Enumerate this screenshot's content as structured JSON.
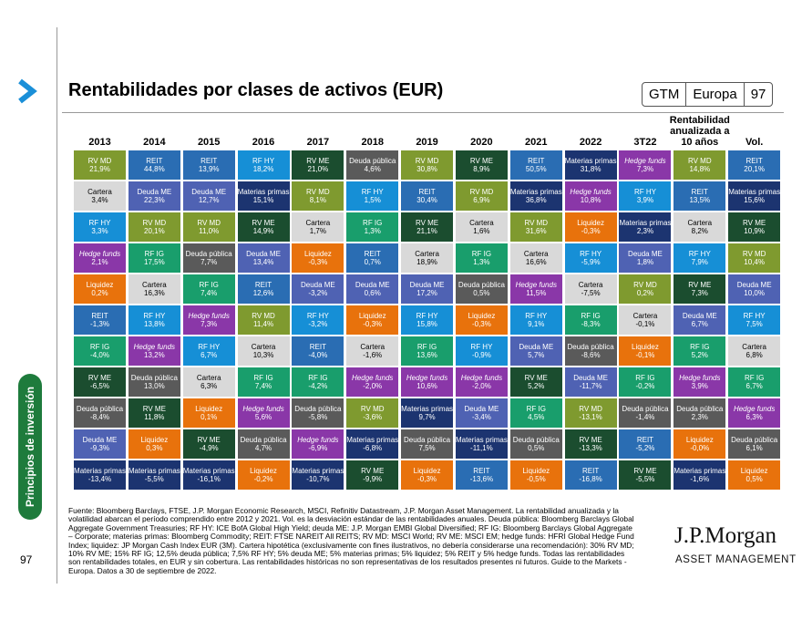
{
  "sidebar": {
    "section": "Principios de inversión",
    "page": "97"
  },
  "header": {
    "title": "Rentabilidades por clases de activos (EUR)",
    "tags": [
      "GTM",
      "Europa",
      "97"
    ]
  },
  "table": {
    "columns": [
      "2013",
      "2014",
      "2015",
      "2016",
      "2017",
      "2018",
      "2019",
      "2020",
      "2021",
      "2022",
      "3T22",
      "Rentabilidad anualizada a 10 años",
      "Vol."
    ],
    "rows": [
      [
        [
          "RV MD",
          "21,9%"
        ],
        [
          "REIT",
          "44,8%"
        ],
        [
          "REIT",
          "13,9%"
        ],
        [
          "RF HY",
          "18,2%"
        ],
        [
          "RV ME",
          "21,0%"
        ],
        [
          "Deuda pública",
          "4,6%"
        ],
        [
          "RV MD",
          "30,8%"
        ],
        [
          "RV ME",
          "8,9%"
        ],
        [
          "REIT",
          "50,5%"
        ],
        [
          "Materias primas",
          "31,8%"
        ],
        [
          "Hedge funds",
          "7,3%"
        ],
        [
          "RV MD",
          "14,8%"
        ],
        [
          "REIT",
          "20,1%"
        ]
      ],
      [
        [
          "Cartera",
          "3,4%"
        ],
        [
          "Deuda ME",
          "22,3%"
        ],
        [
          "Deuda ME",
          "12,7%"
        ],
        [
          "Materias primas",
          "15,1%"
        ],
        [
          "RV MD",
          "8,1%"
        ],
        [
          "RF HY",
          "1,5%"
        ],
        [
          "REIT",
          "30,4%"
        ],
        [
          "RV MD",
          "6,9%"
        ],
        [
          "Materias primas",
          "36,8%"
        ],
        [
          "Hedge funds",
          "10,8%"
        ],
        [
          "RF HY",
          "3,9%"
        ],
        [
          "REIT",
          "13,5%"
        ],
        [
          "Materias primas",
          "15,6%"
        ]
      ],
      [
        [
          "RF HY",
          "3,3%"
        ],
        [
          "RV MD",
          "20,1%"
        ],
        [
          "RV MD",
          "11,0%"
        ],
        [
          "RV ME",
          "14,9%"
        ],
        [
          "Cartera",
          "1,7%"
        ],
        [
          "RF IG",
          "1,3%"
        ],
        [
          "RV ME",
          "21,1%"
        ],
        [
          "Cartera",
          "1,6%"
        ],
        [
          "RV MD",
          "31,6%"
        ],
        [
          "Liquidez",
          "-0,3%"
        ],
        [
          "Materias primas",
          "2,3%"
        ],
        [
          "Cartera",
          "8,2%"
        ],
        [
          "RV ME",
          "10,9%"
        ]
      ],
      [
        [
          "Hedge funds",
          "2,1%"
        ],
        [
          "RF IG",
          "17,5%"
        ],
        [
          "Deuda pública",
          "7,7%"
        ],
        [
          "Deuda ME",
          "13,4%"
        ],
        [
          "Liquidez",
          "-0,3%"
        ],
        [
          "REIT",
          "0,7%"
        ],
        [
          "Cartera",
          "18,9%"
        ],
        [
          "RF IG",
          "1,3%"
        ],
        [
          "Cartera",
          "16,6%"
        ],
        [
          "RF HY",
          "-5,9%"
        ],
        [
          "Deuda ME",
          "1,8%"
        ],
        [
          "RF HY",
          "7,9%"
        ],
        [
          "RV MD",
          "10,4%"
        ]
      ],
      [
        [
          "Liquidez",
          "0,2%"
        ],
        [
          "Cartera",
          "16,3%"
        ],
        [
          "RF IG",
          "7,4%"
        ],
        [
          "REIT",
          "12,6%"
        ],
        [
          "Deuda ME",
          "-3,2%"
        ],
        [
          "Deuda ME",
          "0,6%"
        ],
        [
          "Deuda ME",
          "17,2%"
        ],
        [
          "Deuda pública",
          "0,5%"
        ],
        [
          "Hedge funds",
          "11,5%"
        ],
        [
          "Cartera",
          "-7,5%"
        ],
        [
          "RV MD",
          "0,2%"
        ],
        [
          "RV ME",
          "7,3%"
        ],
        [
          "Deuda ME",
          "10,0%"
        ]
      ],
      [
        [
          "REIT",
          "-1,3%"
        ],
        [
          "RF HY",
          "13,8%"
        ],
        [
          "Hedge funds",
          "7,3%"
        ],
        [
          "RV MD",
          "11,4%"
        ],
        [
          "RF HY",
          "-3,2%"
        ],
        [
          "Liquidez",
          "-0,3%"
        ],
        [
          "RF HY",
          "15,8%"
        ],
        [
          "Liquidez",
          "-0,3%"
        ],
        [
          "RF HY",
          "9,1%"
        ],
        [
          "RF IG",
          "-8,3%"
        ],
        [
          "Cartera",
          "-0,1%"
        ],
        [
          "Deuda ME",
          "6,7%"
        ],
        [
          "RF HY",
          "7,5%"
        ]
      ],
      [
        [
          "RF IG",
          "-4,0%"
        ],
        [
          "Hedge funds",
          "13,2%"
        ],
        [
          "RF HY",
          "6,7%"
        ],
        [
          "Cartera",
          "10,3%"
        ],
        [
          "REIT",
          "-4,0%"
        ],
        [
          "Cartera",
          "-1,6%"
        ],
        [
          "RF IG",
          "13,6%"
        ],
        [
          "RF HY",
          "-0,9%"
        ],
        [
          "Deuda ME",
          "5,7%"
        ],
        [
          "Deuda pública",
          "-8,6%"
        ],
        [
          "Liquidez",
          "-0,1%"
        ],
        [
          "RF IG",
          "5,2%"
        ],
        [
          "Cartera",
          "6,8%"
        ]
      ],
      [
        [
          "RV ME",
          "-6,5%"
        ],
        [
          "Deuda pública",
          "13,0%"
        ],
        [
          "Cartera",
          "6,3%"
        ],
        [
          "RF IG",
          "7,4%"
        ],
        [
          "RF IG",
          "-4,2%"
        ],
        [
          "Hedge funds",
          "-2,0%"
        ],
        [
          "Hedge funds",
          "10,6%"
        ],
        [
          "Hedge funds",
          "-2,0%"
        ],
        [
          "RV ME",
          "5,2%"
        ],
        [
          "Deuda ME",
          "-11,7%"
        ],
        [
          "RF IG",
          "-0,2%"
        ],
        [
          "Hedge funds",
          "3,9%"
        ],
        [
          "RF IG",
          "6,7%"
        ]
      ],
      [
        [
          "Deuda pública",
          "-8,4%"
        ],
        [
          "RV ME",
          "11,8%"
        ],
        [
          "Liquidez",
          "0,1%"
        ],
        [
          "Hedge funds",
          "5,6%"
        ],
        [
          "Deuda pública",
          "-5,8%"
        ],
        [
          "RV MD",
          "-3,6%"
        ],
        [
          "Materias primas",
          "9,7%"
        ],
        [
          "Deuda ME",
          "-3,4%"
        ],
        [
          "RF IG",
          "4,5%"
        ],
        [
          "RV MD",
          "-13,1%"
        ],
        [
          "Deuda pública",
          "-1,4%"
        ],
        [
          "Deuda pública",
          "2,3%"
        ],
        [
          "Hedge funds",
          "6,3%"
        ]
      ],
      [
        [
          "Deuda ME",
          "-9,3%"
        ],
        [
          "Liquidez",
          "0,3%"
        ],
        [
          "RV ME",
          "-4,9%"
        ],
        [
          "Deuda pública",
          "4,7%"
        ],
        [
          "Hedge funds",
          "-6,9%"
        ],
        [
          "Materias primas",
          "-6,8%"
        ],
        [
          "Deuda pública",
          "7,5%"
        ],
        [
          "Materias primas",
          "-11,1%"
        ],
        [
          "Deuda pública",
          "0,5%"
        ],
        [
          "RV ME",
          "-13,3%"
        ],
        [
          "REIT",
          "-5,2%"
        ],
        [
          "Liquidez",
          "-0,0%"
        ],
        [
          "Deuda pública",
          "6,1%"
        ]
      ],
      [
        [
          "Materias primas",
          "-13,4%"
        ],
        [
          "Materias primas",
          "-5,5%"
        ],
        [
          "Materias primas",
          "-16,1%"
        ],
        [
          "Liquidez",
          "-0,2%"
        ],
        [
          "Materias primas",
          "-10,7%"
        ],
        [
          "RV ME",
          "-9,9%"
        ],
        [
          "Liquidez",
          "-0,3%"
        ],
        [
          "REIT",
          "-13,6%"
        ],
        [
          "Liquidez",
          "-0,5%"
        ],
        [
          "REIT",
          "-16,8%"
        ],
        [
          "RV ME",
          "-5,5%"
        ],
        [
          "Materias primas",
          "-1,6%"
        ],
        [
          "Liquidez",
          "0,5%"
        ]
      ]
    ],
    "asset_styles": {
      "RV MD": {
        "color": "#7f9a2f"
      },
      "REIT": {
        "color": "#2a6db3"
      },
      "RF HY": {
        "color": "#168fd6"
      },
      "Hedge funds": {
        "color": "#8a37a8",
        "italic": true
      },
      "Liquidez": {
        "color": "#e8720c"
      },
      "Cartera": {
        "color": "#d9d9d9",
        "text_color": "#000000"
      },
      "Deuda ME": {
        "color": "#4f62b3"
      },
      "RF IG": {
        "color": "#199e6c"
      },
      "RV ME": {
        "color": "#1b4d2f"
      },
      "Deuda pública": {
        "color": "#5a5a5a"
      },
      "Materias primas": {
        "color": "#1c3470"
      }
    }
  },
  "footnote": "Fuente: Bloomberg Barclays, FTSE, J.P. Morgan Economic Research, MSCI, Refinitiv Datastream, J.P. Morgan Asset Management. La rentabilidad anualizada y la volatilidad abarcan el período comprendido entre 2012 y 2021. Vol. es la desviación estándar de las rentabilidades anuales. Deuda pública: Bloomberg Barclays Global Aggregate Government Treasuries; RF HY: ICE BofA Global High Yield; deuda ME: J.P. Morgan EMBI Global Diversified; RF IG: Bloomberg Barclays Global Aggregate – Corporate; materias primas: Bloomberg Commodity; REIT: FTSE NAREIT All REITS; RV MD: MSCI World; RV ME: MSCI EM; hedge funds: HFRI Global Hedge Fund Index; liquidez: JP Morgan Cash Index EUR (3M). Cartera hipotética (exclusivamente con fines ilustrativos, no debería considerarse una recomendación): 30% RV MD; 10% RV ME; 15% RF IG; 12,5% deuda pública; 7,5% RF HY; 5% deuda ME; 5% materias primas; 5% liquidez; 5% REIT y 5% hedge funds. Todas las rentabilidades son rentabilidades totales, en EUR y sin cobertura. Las rentabilidades históricas no son representativas de los resultados presentes ni futuros. Guide to the Markets - Europa. Datos a 30 de septiembre de 2022.",
  "logo": {
    "name": "J.P.Morgan",
    "subtitle": "ASSET MANAGEMENT"
  }
}
